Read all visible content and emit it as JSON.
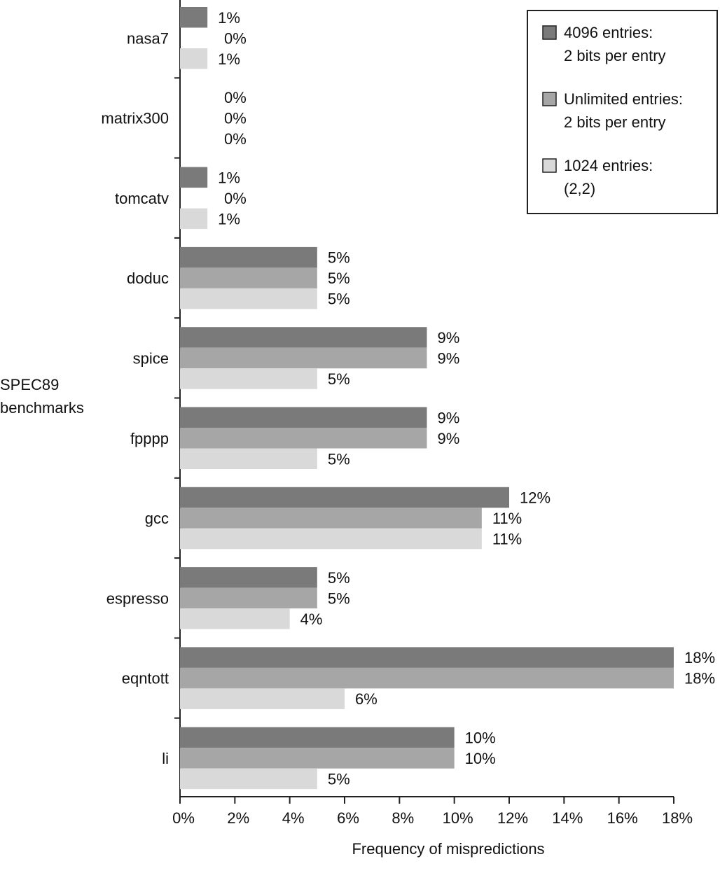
{
  "chart_data": {
    "type": "bar",
    "orientation": "horizontal",
    "ylabel": "SPEC89\nbenchmarks",
    "xlabel": "Frequency of mispredictions",
    "xlim": [
      0,
      18
    ],
    "xticks": [
      "0%",
      "2%",
      "4%",
      "6%",
      "8%",
      "10%",
      "12%",
      "14%",
      "16%",
      "18%"
    ],
    "categories": [
      "nasa7",
      "matrix300",
      "tomcatv",
      "doduc",
      "spice",
      "fpppp",
      "gcc",
      "espresso",
      "eqntott",
      "li"
    ],
    "series": [
      {
        "name": "4096 entries: 2 bits per entry",
        "legend_lines": [
          "4096 entries:",
          "2 bits per entry"
        ],
        "color": "#7a7a7a",
        "values": [
          1,
          0,
          1,
          5,
          9,
          9,
          12,
          5,
          18,
          10
        ],
        "labels": [
          "1%",
          "0%",
          "1%",
          "5%",
          "9%",
          "9%",
          "12%",
          "5%",
          "18%",
          "10%"
        ]
      },
      {
        "name": "Unlimited entries: 2 bits per entry",
        "legend_lines": [
          "Unlimited entries:",
          "2 bits per entry"
        ],
        "color": "#a6a6a6",
        "values": [
          0,
          0,
          0,
          5,
          9,
          9,
          11,
          5,
          18,
          10
        ],
        "labels": [
          "0%",
          "0%",
          "0%",
          "5%",
          "9%",
          "9%",
          "11%",
          "5%",
          "18%",
          "10%"
        ]
      },
      {
        "name": "1024 entries: (2,2)",
        "legend_lines": [
          "1024 entries:",
          "(2,2)"
        ],
        "color": "#d9d9d9",
        "values": [
          1,
          0,
          1,
          5,
          5,
          5,
          11,
          4,
          6,
          5
        ],
        "labels": [
          "1%",
          "0%",
          "1%",
          "5%",
          "5%",
          "5%",
          "11%",
          "4%",
          "6%",
          "5%"
        ]
      }
    ],
    "legend_position": "top-right",
    "grid": false
  }
}
